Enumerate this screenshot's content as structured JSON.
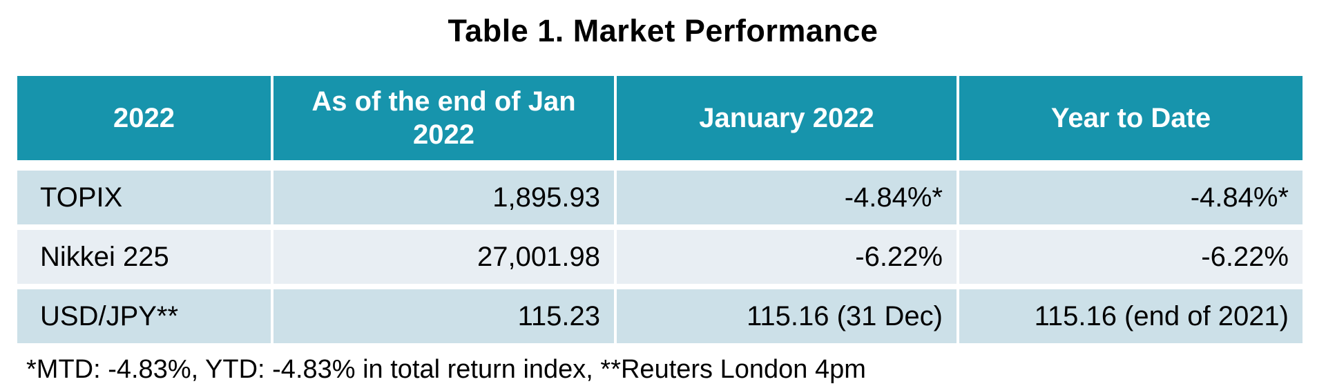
{
  "title": "Table 1. Market Performance",
  "table": {
    "headers": [
      "2022",
      "As of the end of Jan 2022",
      "January 2022",
      "Year to Date"
    ],
    "rows": [
      {
        "label": "TOPIX",
        "values": [
          "1,895.93",
          "-4.84%*",
          "-4.84%*"
        ]
      },
      {
        "label": "Nikkei 225",
        "values": [
          "27,001.98",
          "-6.22%",
          "-6.22%"
        ]
      },
      {
        "label": "USD/JPY**",
        "values": [
          "115.23",
          "115.16 (31 Dec)",
          "115.16 (end of 2021)"
        ]
      }
    ]
  },
  "footnote": "*MTD: -4.83%, YTD: -4.83% in total return index, **Reuters London 4pm",
  "colors": {
    "header_bg": "#1794AC",
    "header_text": "#FFFFFF",
    "row_odd_bg": "#CCE0E8",
    "row_even_bg": "#E8EEF3",
    "body_text": "#000000"
  },
  "chart_data": {
    "type": "table",
    "title": "Table 1. Market Performance",
    "columns": [
      "2022",
      "As of the end of Jan 2022",
      "January 2022",
      "Year to Date"
    ],
    "rows": [
      [
        "TOPIX",
        "1,895.93",
        "-4.84%*",
        "-4.84%*"
      ],
      [
        "Nikkei 225",
        "27,001.98",
        "-6.22%",
        "-6.22%"
      ],
      [
        "USD/JPY**",
        "115.23",
        "115.16 (31 Dec)",
        "115.16 (end of 2021)"
      ]
    ],
    "footnote": "*MTD: -4.83%, YTD: -4.83% in total return index, **Reuters London 4pm"
  }
}
